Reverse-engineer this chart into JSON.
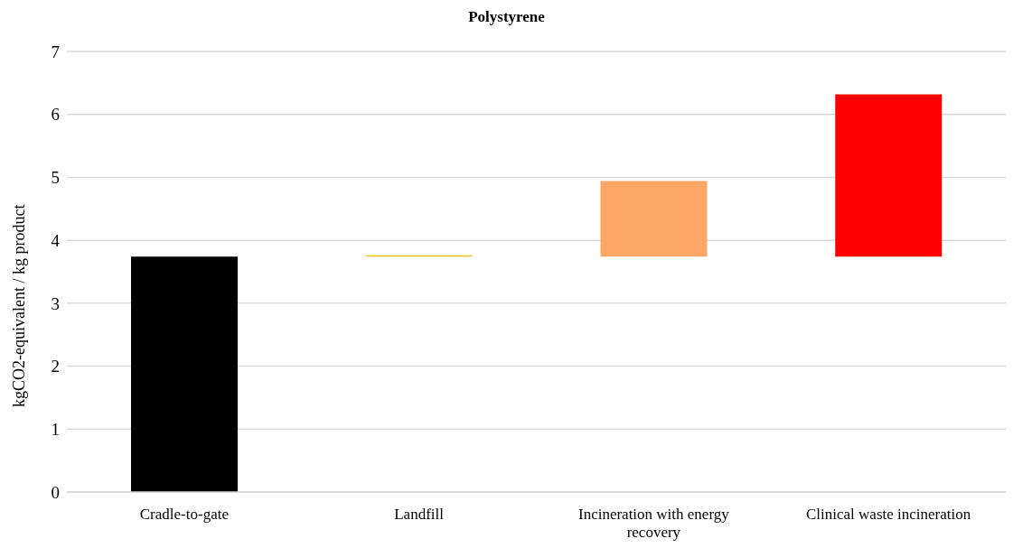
{
  "chart_data": {
    "type": "bar",
    "title": "Polystyrene",
    "ylabel": "kgCO2-equivalent / kg product",
    "categories": [
      "Cradle-to-gate",
      "Landfill",
      "Incineration with energy recovery",
      "Clinical waste incineration"
    ],
    "values": [
      3.74,
      0.02,
      1.2,
      2.58
    ],
    "base": [
      0,
      3.74,
      3.74,
      3.74
    ],
    "colors": [
      "#000000",
      "#f5c218",
      "#fda766",
      "#fe0000"
    ],
    "ylim": [
      0,
      7
    ],
    "yticks": [
      0,
      1,
      2,
      3,
      4,
      5,
      6,
      7
    ],
    "grid": "y",
    "legend": false
  }
}
